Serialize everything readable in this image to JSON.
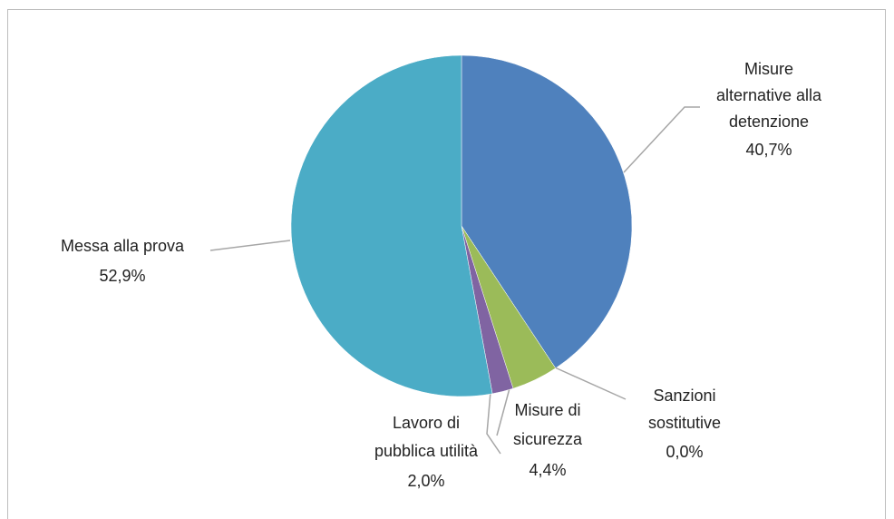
{
  "chart_data": {
    "type": "pie",
    "categories": [
      "Misure alternative alla detenzione",
      "Sanzioni sostitutive",
      "Misure di sicurezza",
      "Lavoro di pubblica utilità",
      "Messa alla prova"
    ],
    "values": [
      40.7,
      0.0,
      4.4,
      2.0,
      52.9
    ],
    "value_labels": [
      "40,7%",
      "0,0%",
      "4,4%",
      "2,0%",
      "52,9%"
    ],
    "colors": [
      "#4f81bd",
      "#c0504d",
      "#9bbb59",
      "#8064a2",
      "#4bacc6"
    ]
  }
}
